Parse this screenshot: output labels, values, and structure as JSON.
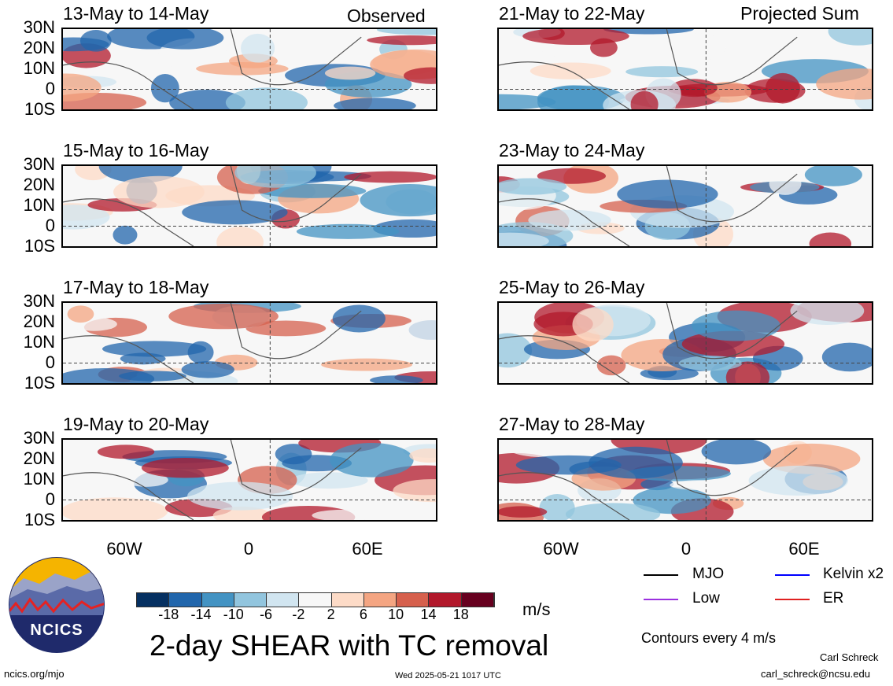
{
  "panels_left": [
    {
      "title": "13-May to 14-May",
      "tag": "Observed"
    },
    {
      "title": "15-May to 16-May",
      "tag": ""
    },
    {
      "title": "17-May to 18-May",
      "tag": ""
    },
    {
      "title": "19-May to 20-May",
      "tag": ""
    }
  ],
  "panels_right": [
    {
      "title": "21-May to 22-May",
      "tag": "Projected Sum"
    },
    {
      "title": "23-May to 24-May",
      "tag": ""
    },
    {
      "title": "25-May to 26-May",
      "tag": ""
    },
    {
      "title": "27-May to 28-May",
      "tag": ""
    }
  ],
  "lat_labels": [
    "30N",
    "20N",
    "10N",
    "0",
    "10S"
  ],
  "lon_labels": [
    "60W",
    "0",
    "60E"
  ],
  "legend": {
    "mjo": "MJO",
    "low": "Low",
    "kelvin": "Kelvin x2",
    "er": "ER",
    "colors": {
      "mjo": "#000000",
      "low": "#9b30e0",
      "kelvin": "#0000ff",
      "er": "#e02020"
    }
  },
  "colorbar": {
    "ticks": [
      "-18",
      "-14",
      "-10",
      "-6",
      "-2",
      "2",
      "6",
      "10",
      "14",
      "18"
    ],
    "colors": [
      "#053061",
      "#2166ac",
      "#4393c3",
      "#92c5de",
      "#d1e5f0",
      "#f7f7f7",
      "#fddbc7",
      "#f4a582",
      "#d6604d",
      "#b2182b",
      "#67001f"
    ],
    "units": "m/s"
  },
  "main_title": "2-day SHEAR with TC removal",
  "contour_note": "Contours every 4 m/s",
  "logo_text": "NCICS",
  "footer": {
    "url": "ncics.org/mjo",
    "timestamp": "Wed 2025-05-21 1017 UTC",
    "author": "Carl Schreck",
    "email": "carl_schreck@ncsu.edu"
  }
}
